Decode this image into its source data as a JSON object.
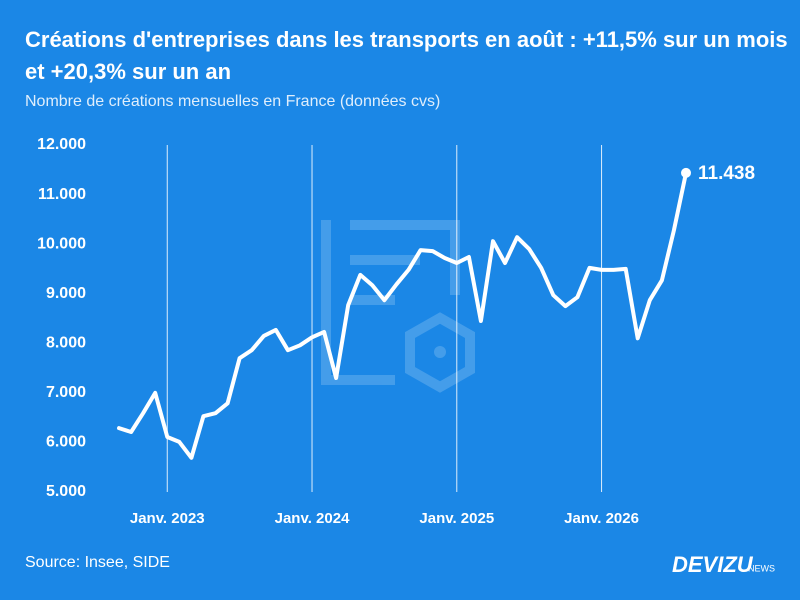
{
  "chart_data": {
    "type": "line",
    "title": "Créations d'entreprises dans les transports en août : +11,5% sur un mois et +20,3% sur un an",
    "subtitle": "Nombre de créations mensuelles en France (données cvs)",
    "source": "Source: Insee, SIDE",
    "brand": "DEVIZU",
    "brand_suffix": "NEWS",
    "categories": [
      null,
      null,
      null,
      null,
      "Janv. 2023",
      null,
      null,
      null,
      null,
      null,
      null,
      null,
      null,
      null,
      null,
      null,
      "Janv. 2024",
      null,
      null,
      null,
      null,
      null,
      null,
      null,
      null,
      null,
      null,
      null,
      "Janv. 2025",
      null,
      null,
      null,
      null,
      null,
      null,
      null,
      null,
      null,
      null,
      null,
      "Janv. 2026",
      null,
      null,
      null,
      null,
      null,
      null,
      null
    ],
    "values": [
      6290,
      6210,
      6590,
      7000,
      6110,
      6010,
      5690,
      6530,
      6590,
      6790,
      7700,
      7860,
      8150,
      8270,
      7860,
      7960,
      8120,
      8230,
      7300,
      8770,
      9380,
      9170,
      8870,
      9190,
      9480,
      9880,
      9860,
      9720,
      9620,
      9740,
      8450,
      10060,
      9620,
      10140,
      9900,
      9520,
      8970,
      8750,
      8930,
      9520,
      9480,
      9480,
      9500,
      8100,
      8870,
      9270,
      10280,
      11438
    ],
    "value_labels": [
      null,
      null,
      null,
      null,
      null,
      null,
      null,
      null,
      null,
      null,
      null,
      null,
      null,
      null,
      null,
      null,
      null,
      null,
      null,
      null,
      null,
      null,
      null,
      null,
      null,
      null,
      null,
      null,
      null,
      null,
      null,
      null,
      null,
      null,
      null,
      null,
      null,
      null,
      null,
      null,
      null,
      null,
      null,
      null,
      null,
      null,
      null,
      "11.438"
    ],
    "color": "#ffffff",
    "ylim": [
      5000,
      12000
    ],
    "yticks": [
      {
        "value": 5000,
        "label": "5.000"
      },
      {
        "value": 6000,
        "label": "6.000"
      },
      {
        "value": 7000,
        "label": "7.000"
      },
      {
        "value": 8000,
        "label": "8.000"
      },
      {
        "value": 9000,
        "label": "9.000"
      },
      {
        "value": 10000,
        "label": "10.000"
      },
      {
        "value": 11000,
        "label": "11.000"
      },
      {
        "value": 12000,
        "label": "12.000"
      }
    ],
    "grid": "x"
  }
}
